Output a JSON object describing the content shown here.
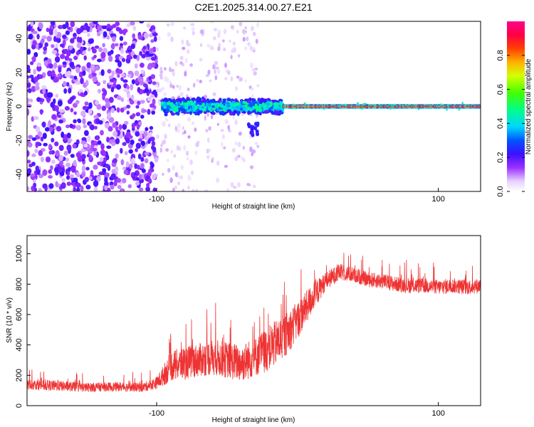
{
  "title": "C2E1.2025.314.00.27.E21",
  "chart_data": [
    {
      "type": "heatmap",
      "title": "C2E1.2025.314.00.27.E21",
      "xlabel": "Height of straight line (km)",
      "ylabel": "Frequency (Hz)",
      "xlim": [
        -192,
        130
      ],
      "ylim": [
        -50,
        50
      ],
      "xticks": [
        -100,
        100
      ],
      "xtick_labels": [
        "-100",
        "100"
      ],
      "yticks": [
        -40,
        -20,
        0,
        20,
        40
      ],
      "ytick_labels": [
        "-40",
        "-20",
        "0",
        "20",
        "40"
      ],
      "colorbar": {
        "label": "Normalized spectral amplitude",
        "range": [
          0,
          1
        ],
        "ticks": [
          0.0,
          0.2,
          0.4,
          0.6,
          0.8
        ],
        "tick_labels": [
          "0.0",
          "0.2",
          "0.4",
          "0.6",
          "0.8"
        ],
        "colormap": "rainbow (white → purple → blue → cyan → green → yellow → orange → red → magenta)"
      },
      "features": [
        {
          "region": "noise",
          "x_range": [
            -192,
            -100
          ],
          "freq_range": [
            -50,
            50
          ],
          "amplitude": "0.1-0.3"
        },
        {
          "region": "sparse noise",
          "x_range": [
            -100,
            -30
          ],
          "freq_range": [
            -50,
            50
          ],
          "amplitude": "0.0-0.1"
        },
        {
          "region": "signal band",
          "x_range": [
            -96,
            -10
          ],
          "freq_center": 0,
          "freq_halfwidth": 5,
          "amplitude": "0.3-0.5"
        },
        {
          "region": "signal line",
          "x_range": [
            -10,
            130
          ],
          "freq_center": 0,
          "freq_halfwidth": 1.5,
          "amplitude": "0.8-1.0"
        },
        {
          "region": "side blob",
          "x_range": [
            -40,
            -28
          ],
          "freq_center": -14,
          "amplitude": "0.2"
        }
      ]
    },
    {
      "type": "line",
      "xlabel": "Height of straight line (km)",
      "ylabel": "SNR (10 * v/v)",
      "xlim": [
        -192,
        130
      ],
      "ylim": [
        0,
        1120
      ],
      "xticks": [
        -100,
        100
      ],
      "xtick_labels": [
        "-100",
        "100"
      ],
      "yticks": [
        0,
        200,
        400,
        600,
        800,
        1000
      ],
      "ytick_labels": [
        "0",
        "200",
        "400",
        "600",
        "800",
        "1000"
      ],
      "color": "#ee3333",
      "series": [
        {
          "name": "SNR",
          "x": [
            -192,
            -170,
            -150,
            -130,
            -110,
            -100,
            -95,
            -90,
            -80,
            -70,
            -60,
            -50,
            -40,
            -30,
            -20,
            -10,
            0,
            10,
            20,
            30,
            40,
            50,
            60,
            70,
            80,
            90,
            100,
            110,
            120,
            130
          ],
          "values": [
            140,
            130,
            120,
            125,
            120,
            150,
            200,
            260,
            280,
            300,
            320,
            300,
            280,
            320,
            380,
            450,
            560,
            700,
            820,
            880,
            860,
            830,
            820,
            800,
            790,
            790,
            780,
            790,
            780,
            790
          ],
          "spread": [
            70,
            70,
            60,
            60,
            60,
            80,
            140,
            200,
            220,
            220,
            240,
            240,
            250,
            260,
            300,
            300,
            250,
            200,
            120,
            110,
            100,
            100,
            100,
            100,
            100,
            100,
            100,
            100,
            100,
            100
          ]
        }
      ]
    }
  ]
}
